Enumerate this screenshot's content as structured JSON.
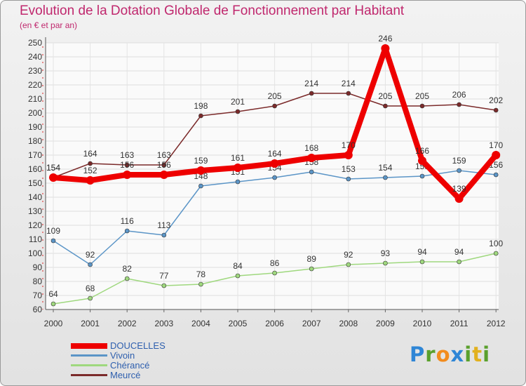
{
  "title": "Evolution de la Dotation Globale de Fonctionnement par Habitant",
  "subtitle": "(en € et par an)",
  "logo": {
    "letters": [
      {
        "ch": "P",
        "color": "#2f86d6"
      },
      {
        "ch": "r",
        "color": "#5aa02c"
      },
      {
        "ch": "o",
        "color": "#f28c1e"
      },
      {
        "ch": "x",
        "color": "#2f86d6"
      },
      {
        "ch": "i",
        "color": "#5aa02c"
      },
      {
        "ch": "t",
        "color": "#e2b11f"
      },
      {
        "ch": "i",
        "color": "#5aa02c"
      }
    ]
  },
  "chart_data": {
    "type": "line",
    "x": [
      "2000",
      "2001",
      "2002",
      "2003",
      "2004",
      "2005",
      "2006",
      "2007",
      "2008",
      "2009",
      "2010",
      "2011",
      "2012"
    ],
    "ylim": [
      60,
      250
    ],
    "yticks": [
      60,
      70,
      80,
      90,
      100,
      110,
      120,
      130,
      140,
      150,
      160,
      170,
      180,
      190,
      200,
      210,
      220,
      230,
      240,
      250
    ],
    "grid": true,
    "legend_position": "bottom-left",
    "series": [
      {
        "name": "Meurcé",
        "color": "#7b2a2a",
        "values": [
          154,
          164,
          163,
          163,
          198,
          201,
          205,
          214,
          214,
          205,
          205,
          206,
          202
        ]
      },
      {
        "name": "Vivoin",
        "color": "#5b95c7",
        "values": [
          109,
          92,
          116,
          113,
          148,
          151,
          154,
          158,
          153,
          154,
          155,
          159,
          156
        ]
      },
      {
        "name": "Chérancé",
        "color": "#9fd87e",
        "values": [
          64,
          68,
          82,
          77,
          78,
          84,
          86,
          89,
          92,
          93,
          94,
          94,
          100
        ]
      },
      {
        "name": "DOUCELLES",
        "color": "#ee0000",
        "values": [
          154,
          152,
          156,
          156,
          159,
          161,
          164,
          168,
          170,
          246,
          166,
          139,
          170
        ]
      }
    ],
    "legend_order": [
      "DOUCELLES",
      "Vivoin",
      "Chérancé",
      "Meurcé"
    ],
    "label_text_color": "#333333",
    "legend_text_color": "#2e5fae"
  }
}
